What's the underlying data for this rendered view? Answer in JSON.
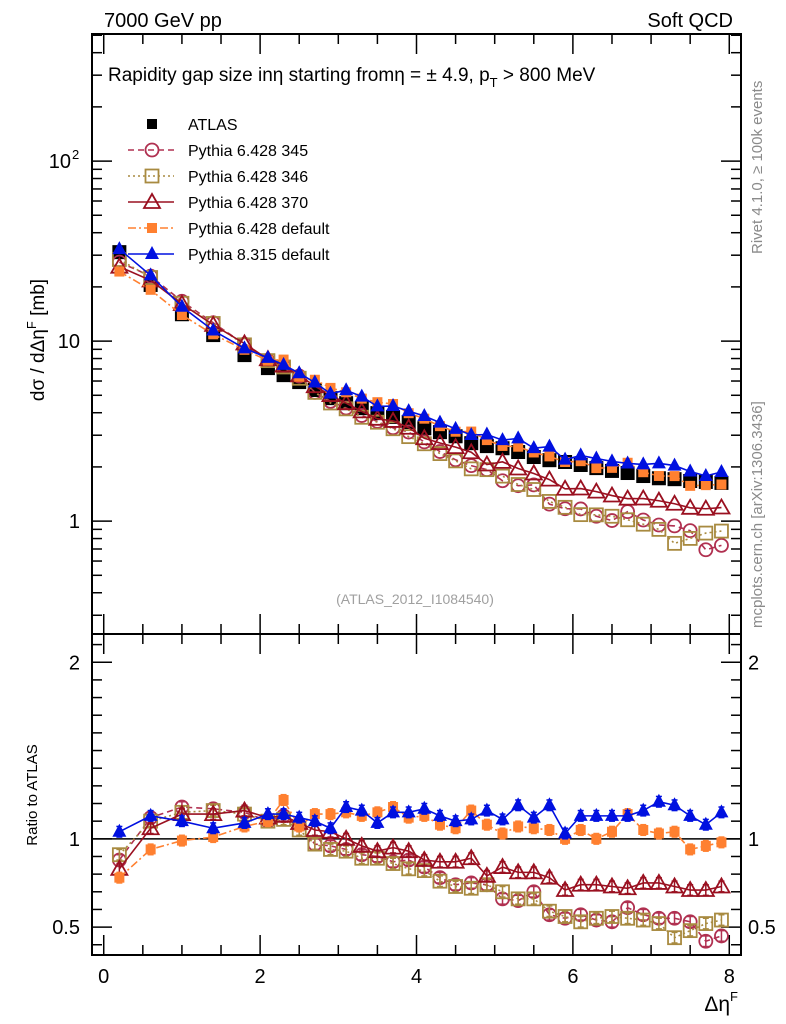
{
  "header": {
    "left_label": "7000 GeV pp",
    "right_label": "Soft QCD"
  },
  "side_labels": {
    "rivet": "Rivet 4.1.0, ≥ 100k events",
    "mcplots": "mcplots.cern.ch [arXiv:1306.3436]"
  },
  "analysis_id": "(ATLAS_2012_I1084540)",
  "chart_data": [
    {
      "type": "scatter",
      "panel": "main",
      "title": "Rapidity gap size inη starting fromη = ± 4.9, p_T > 800 MeV",
      "title_parts": {
        "main": "Rapidity gap size inη starting fromη = ± 4.9, p",
        "sub": "T",
        "tail": " > 800 MeV"
      },
      "xlabel": "Δη^F",
      "ylabel": "dσ / dΔη^F [mb]",
      "ylabel_parts": {
        "main": "dσ / dΔη",
        "sup": "F",
        "tail": " [mb]"
      },
      "yscale": "log",
      "xlim": [
        -0.15,
        8.15
      ],
      "ylim": [
        0.236,
        508
      ],
      "yticks": [
        {
          "value": 1,
          "label": "1"
        },
        {
          "value": 10,
          "label": "10"
        },
        {
          "value": 100,
          "label": "10",
          "sup": "2"
        }
      ],
      "legend_position": "top-left",
      "x": [
        0.2,
        0.6,
        1.0,
        1.4,
        1.8,
        2.1,
        2.3,
        2.5,
        2.7,
        2.9,
        3.1,
        3.3,
        3.5,
        3.7,
        3.9,
        4.1,
        4.3,
        4.5,
        4.7,
        4.9,
        5.1,
        5.3,
        5.5,
        5.7,
        5.9,
        6.1,
        6.3,
        6.5,
        6.7,
        6.9,
        7.1,
        7.3,
        7.5,
        7.7,
        7.9
      ],
      "reference": {
        "name": "ATLAS",
        "values": [
          31.2,
          20.5,
          14.1,
          10.8,
          8.36,
          7.08,
          6.47,
          5.92,
          5.35,
          4.82,
          4.52,
          4.24,
          3.98,
          3.79,
          3.55,
          3.28,
          3.12,
          2.96,
          2.71,
          2.61,
          2.54,
          2.42,
          2.27,
          2.18,
          2.13,
          2.05,
          1.97,
          1.9,
          1.85,
          1.78,
          1.73,
          1.71,
          1.67,
          1.65,
          1.63
        ]
      },
      "series": [
        {
          "name": "Pythia 6.428 345",
          "key": "p345",
          "color": "#b03050",
          "marker": "open-circle",
          "line": "dashed"
        },
        {
          "name": "Pythia 6.428 346",
          "key": "p346",
          "color": "#a88a40",
          "marker": "open-square",
          "line": "dotted"
        },
        {
          "name": "Pythia 6.428 370",
          "key": "p370",
          "color": "#9a1020",
          "marker": "open-triangle",
          "line": "solid"
        },
        {
          "name": "Pythia 6.428 default",
          "key": "p6def",
          "color": "#ff8030",
          "marker": "filled-square",
          "line": "dashdot"
        },
        {
          "name": "Pythia 8.315 default",
          "key": "p8def",
          "color": "#0010e0",
          "marker": "filled-triangle",
          "line": "solid"
        }
      ],
      "note": "Main-panel MC values = ratio x ATLAS (see ratio panel)"
    },
    {
      "type": "scatter",
      "panel": "ratio",
      "ylabel": "Ratio to ATLAS",
      "xlabel": "Δη^F",
      "yscale": "linear",
      "xlim": [
        -0.15,
        8.15
      ],
      "ylim": [
        0.342,
        2.16
      ],
      "xticks": [
        0,
        2,
        4,
        6,
        8
      ],
      "yticks": [
        0.5,
        1,
        2
      ],
      "reference_line": 1,
      "x": [
        0.2,
        0.6,
        1.0,
        1.4,
        1.8,
        2.1,
        2.3,
        2.5,
        2.7,
        2.9,
        3.1,
        3.3,
        3.5,
        3.7,
        3.9,
        4.1,
        4.3,
        4.5,
        4.7,
        4.9,
        5.1,
        5.3,
        5.5,
        5.7,
        5.9,
        6.1,
        6.3,
        6.5,
        6.7,
        6.9,
        7.1,
        7.3,
        7.5,
        7.7,
        7.9
      ],
      "ratios": {
        "p345": [
          0.88,
          1.12,
          1.18,
          1.17,
          1.15,
          1.1,
          1.13,
          1.08,
          0.97,
          0.96,
          0.94,
          0.91,
          0.9,
          0.87,
          0.88,
          0.84,
          0.78,
          0.74,
          0.75,
          0.74,
          0.66,
          0.65,
          0.7,
          0.57,
          0.55,
          0.57,
          0.54,
          0.53,
          0.61,
          0.57,
          0.55,
          0.55,
          0.53,
          0.42,
          0.45
        ],
        "p346": [
          0.91,
          1.1,
          1.15,
          1.16,
          1.14,
          1.1,
          1.11,
          1.05,
          0.97,
          0.94,
          0.93,
          0.89,
          0.89,
          0.86,
          0.83,
          0.82,
          0.76,
          0.73,
          0.72,
          0.74,
          0.7,
          0.66,
          0.66,
          0.59,
          0.56,
          0.53,
          0.55,
          0.56,
          0.55,
          0.54,
          0.52,
          0.44,
          0.48,
          0.52,
          0.54
        ],
        "p370": [
          0.83,
          1.06,
          1.14,
          1.14,
          1.16,
          1.12,
          1.13,
          1.09,
          1.05,
          1.04,
          1.0,
          0.96,
          0.93,
          0.95,
          0.93,
          0.88,
          0.87,
          0.87,
          0.89,
          0.79,
          0.84,
          0.81,
          0.81,
          0.78,
          0.71,
          0.74,
          0.74,
          0.73,
          0.72,
          0.75,
          0.75,
          0.73,
          0.71,
          0.71,
          0.73
        ],
        "p6def": [
          0.78,
          0.94,
          0.99,
          1.01,
          1.07,
          1.1,
          1.22,
          1.07,
          1.14,
          1.14,
          1.15,
          1.13,
          1.15,
          1.18,
          1.12,
          1.13,
          1.08,
          1.06,
          1.16,
          1.08,
          1.03,
          1.07,
          1.06,
          1.05,
          1.0,
          1.05,
          1.0,
          1.04,
          1.14,
          1.05,
          1.03,
          1.04,
          0.94,
          0.96,
          0.98
        ],
        "p8def": [
          1.04,
          1.13,
          1.1,
          1.06,
          1.09,
          1.14,
          1.14,
          1.12,
          1.1,
          1.06,
          1.18,
          1.16,
          1.09,
          1.15,
          1.15,
          1.17,
          1.13,
          1.1,
          1.11,
          1.16,
          1.11,
          1.19,
          1.12,
          1.19,
          1.03,
          1.13,
          1.13,
          1.13,
          1.13,
          1.16,
          1.21,
          1.19,
          1.13,
          1.08,
          1.15
        ]
      },
      "ratio_errors_approx": 0.03
    }
  ]
}
